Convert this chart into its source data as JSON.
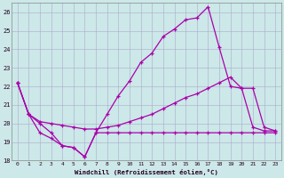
{
  "xlabel": "Windchill (Refroidissement éolien,°C)",
  "background_color": "#cce8e8",
  "grid_color": "#aaaacc",
  "line_color": "#aa00aa",
  "xlim": [
    -0.5,
    23.5
  ],
  "ylim": [
    18,
    26.5
  ],
  "yticks": [
    18,
    19,
    20,
    21,
    22,
    23,
    24,
    25,
    26
  ],
  "xticks": [
    0,
    1,
    2,
    3,
    4,
    5,
    6,
    7,
    8,
    9,
    10,
    11,
    12,
    13,
    14,
    15,
    16,
    17,
    18,
    19,
    20,
    21,
    22,
    23
  ],
  "line1_x": [
    0,
    1,
    2,
    3,
    4,
    5,
    6,
    7,
    8,
    9,
    10,
    11,
    12,
    13,
    14,
    15,
    16,
    17,
    18,
    19,
    20,
    21,
    22,
    23
  ],
  "line1_y": [
    22.2,
    20.5,
    20.0,
    19.5,
    18.8,
    18.7,
    18.2,
    19.5,
    20.5,
    21.5,
    22.3,
    23.3,
    23.8,
    24.7,
    25.1,
    25.6,
    25.7,
    26.3,
    24.1,
    22.0,
    21.9,
    19.8,
    19.6,
    19.6
  ],
  "line2_x": [
    0,
    1,
    2,
    3,
    4,
    5,
    6,
    7,
    8,
    9,
    10,
    11,
    12,
    13,
    14,
    15,
    16,
    17,
    18,
    19,
    20,
    21,
    22,
    23
  ],
  "line2_y": [
    22.2,
    20.5,
    20.1,
    20.0,
    19.9,
    19.8,
    19.7,
    19.7,
    19.8,
    19.9,
    20.1,
    20.3,
    20.5,
    20.8,
    21.1,
    21.4,
    21.6,
    21.9,
    22.2,
    22.5,
    21.9,
    21.9,
    19.8,
    19.6
  ],
  "line3_x": [
    0,
    1,
    2,
    3,
    4,
    5,
    6,
    7,
    8,
    9,
    10,
    11,
    12,
    13,
    14,
    15,
    16,
    17,
    18,
    19,
    20,
    21,
    22,
    23
  ],
  "line3_y": [
    22.2,
    20.5,
    19.5,
    19.2,
    18.8,
    18.7,
    18.2,
    19.5,
    19.5,
    19.5,
    19.5,
    19.5,
    19.5,
    19.5,
    19.5,
    19.5,
    19.5,
    19.5,
    19.5,
    19.5,
    19.5,
    19.5,
    19.5,
    19.5
  ]
}
